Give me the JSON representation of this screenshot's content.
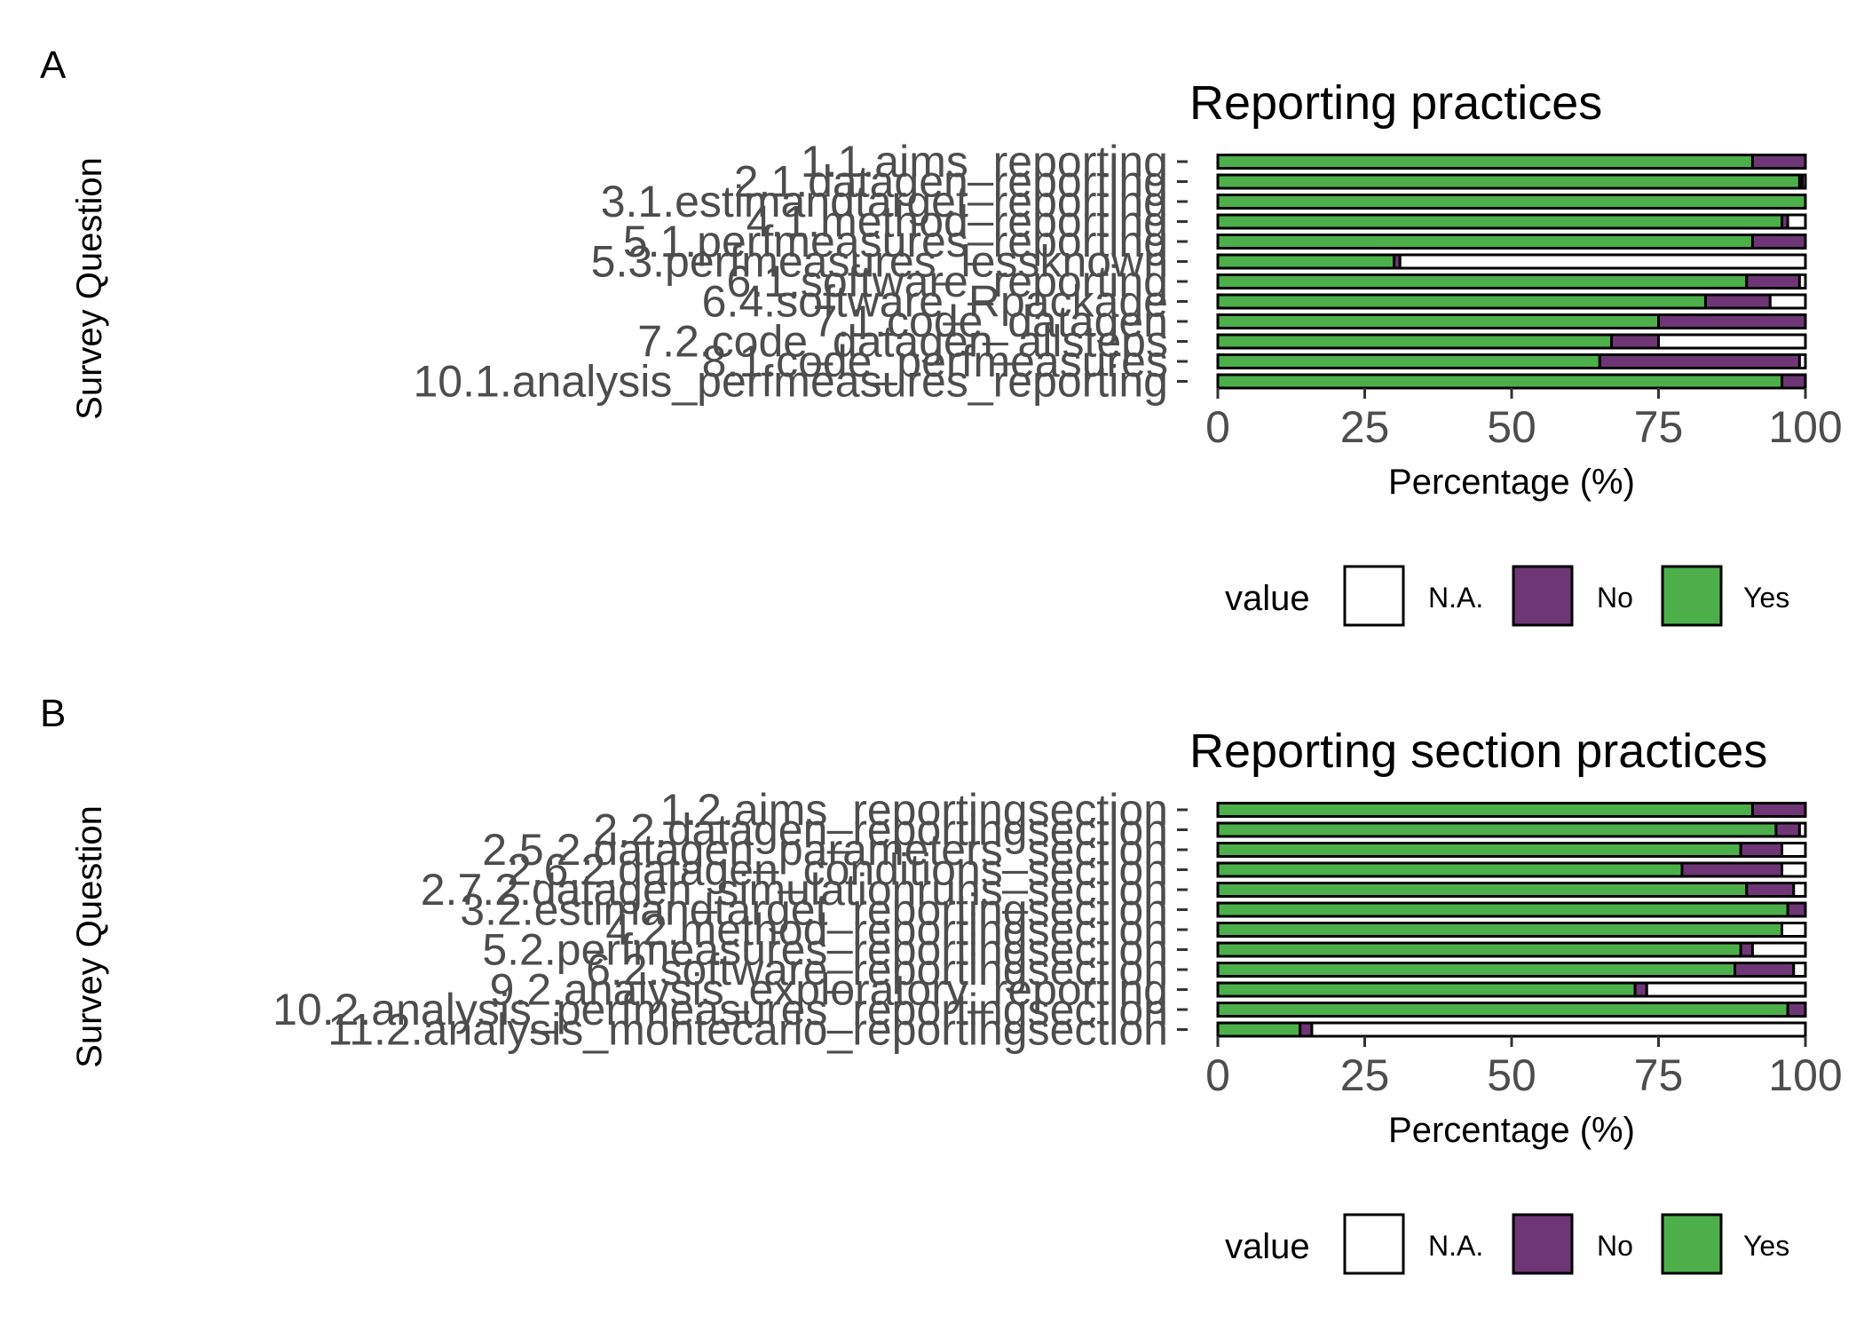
{
  "chart_data": [
    {
      "type": "bar",
      "orientation": "horizontal",
      "stacked": true,
      "panel_label": "A",
      "title": "Reporting practices",
      "xlabel": "Percentage (%)",
      "ylabel": "Survey Question",
      "xlim": [
        0,
        100
      ],
      "xticks": [
        "0",
        "25",
        "50",
        "75",
        "100"
      ],
      "grid": false,
      "legend": {
        "title": "value",
        "position": "bottom"
      },
      "categories": [
        "1.1.aims_reporting",
        "2.1.datagen_reporting",
        "3.1.estimandtarget_reporting",
        "4.1.method_reporting",
        "5.1.perfmeasures_reporting",
        "5.3.perfmeasures_lessknown",
        "6.1.software_reporting",
        "6.4.software_Rpackage",
        "7.1.code_datagen",
        "7.2.code_datagen_allsteps",
        "8.1.code_perfmeasures",
        "10.1.analysis_perfmeasures_reporting"
      ],
      "series": [
        {
          "name": "Yes",
          "color": "#4daf4a",
          "values": [
            91,
            99,
            100,
            96,
            91,
            30,
            90,
            83,
            75,
            67,
            65,
            96
          ]
        },
        {
          "name": "No",
          "color": "#6f3676",
          "values": [
            9,
            0.5,
            0,
            1,
            9,
            1,
            9,
            11,
            25,
            8,
            34,
            4
          ]
        },
        {
          "name": "N.A.",
          "color": "#ffffff",
          "values": [
            0,
            0.5,
            0,
            3,
            0,
            69,
            1,
            6,
            0,
            25,
            1,
            0
          ]
        }
      ]
    },
    {
      "type": "bar",
      "orientation": "horizontal",
      "stacked": true,
      "panel_label": "B",
      "title": "Reporting section practices",
      "xlabel": "Percentage (%)",
      "ylabel": "Survey Question",
      "xlim": [
        0,
        100
      ],
      "xticks": [
        "0",
        "25",
        "50",
        "75",
        "100"
      ],
      "grid": false,
      "legend": {
        "title": "value",
        "position": "bottom"
      },
      "categories": [
        "1.2.aims_reportingsection",
        "2.2.datagen_reportingsection",
        "2.5.2.datagen_parameters_section",
        "2.6.2.datagen_conditions_section",
        "2.7.2.datagen_simulationruns_section",
        "3.2.estimandtarget_reportingsection",
        "4.2.method_reportingsection",
        "5.2.perfmeasures_reportingsection",
        "6.2.software_reportingsection",
        "9.2.analysis_exploratory_reporting",
        "10.2.analysis_perfmeasures_reportingsection",
        "11.2.analysis_montecarlo_reportingsection"
      ],
      "series": [
        {
          "name": "Yes",
          "color": "#4daf4a",
          "values": [
            91,
            95,
            89,
            79,
            90,
            97,
            96,
            89,
            88,
            71,
            97,
            14
          ]
        },
        {
          "name": "No",
          "color": "#6f3676",
          "values": [
            9,
            4,
            7,
            17,
            8,
            3,
            0,
            2,
            10,
            2,
            3,
            2
          ]
        },
        {
          "name": "N.A.",
          "color": "#ffffff",
          "values": [
            0,
            1,
            4,
            4,
            2,
            0,
            4,
            9,
            2,
            27,
            0,
            84
          ]
        }
      ]
    }
  ],
  "legend_entries": [
    "N.A.",
    "No",
    "Yes"
  ]
}
